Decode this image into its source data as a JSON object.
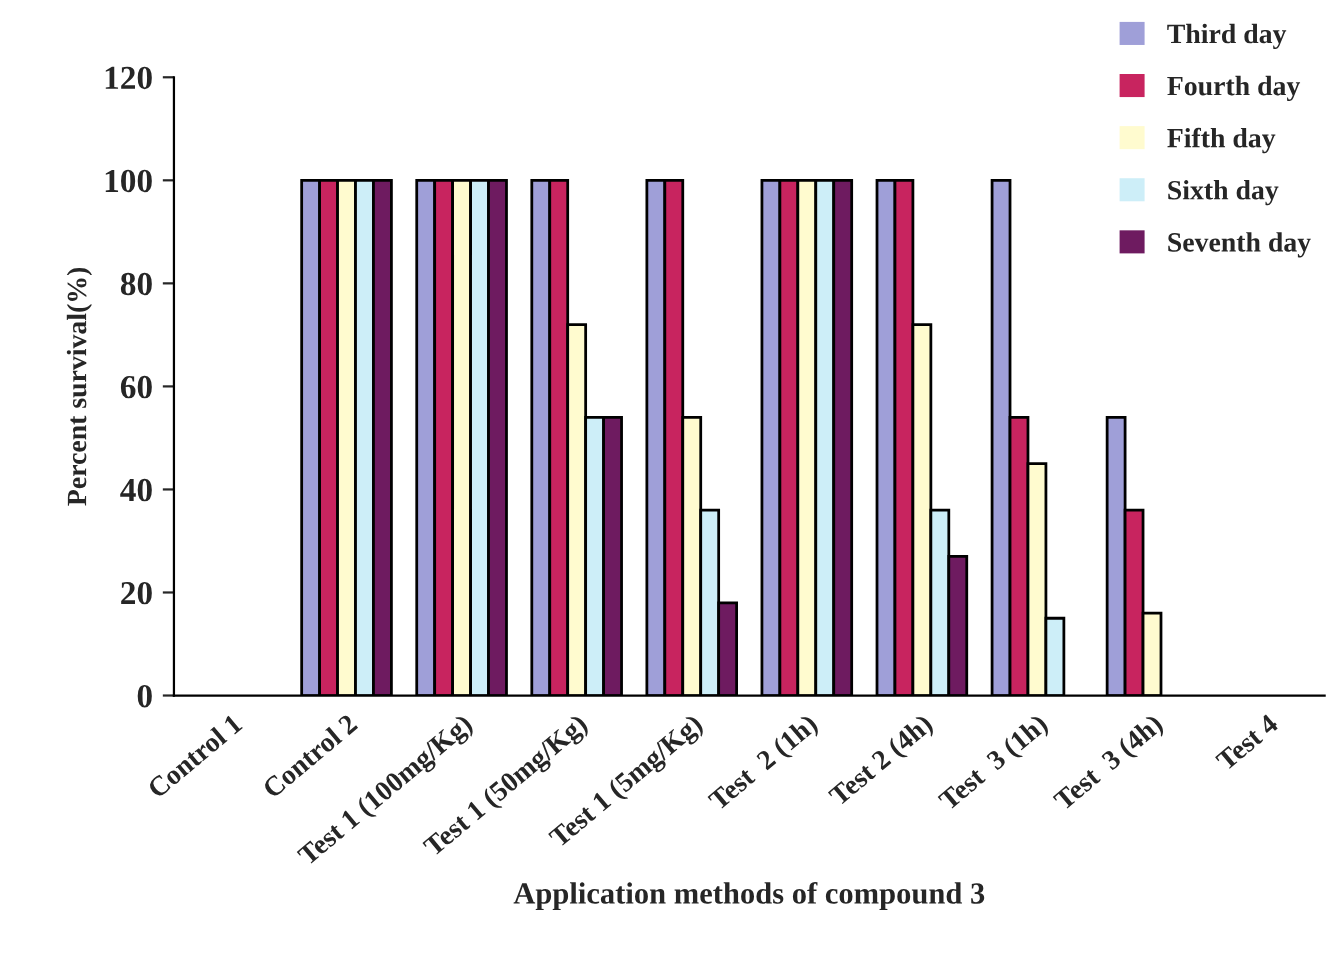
{
  "chart_data": {
    "type": "bar",
    "xlabel": "Application methods of compound 3",
    "ylabel": "Percent survival(%)",
    "categories": [
      "Control 1",
      "Control 2",
      "Test 1 (100mg/Kg)",
      "Test 1 (50mg/Kg)",
      "Test 1 (5mg/Kg)",
      "Test  2 (1h)",
      "Test 2 (4h)",
      "Test  3 (1h)",
      "Test  3 (4h)",
      "Test 4"
    ],
    "series": [
      {
        "name": "Third day",
        "color": "#9f9fd8",
        "values": [
          0,
          100,
          100,
          100,
          100,
          100,
          100,
          100,
          54,
          0
        ]
      },
      {
        "name": "Fourth day",
        "color": "#c8245f",
        "values": [
          0,
          100,
          100,
          100,
          100,
          100,
          100,
          54,
          36,
          0
        ]
      },
      {
        "name": "Fifth day",
        "color": "#fffbcf",
        "values": [
          0,
          100,
          100,
          72,
          54,
          100,
          72,
          45,
          16,
          0
        ]
      },
      {
        "name": "Sixth day",
        "color": "#cdeef8",
        "values": [
          0,
          100,
          100,
          54,
          36,
          100,
          36,
          15,
          0,
          0
        ]
      },
      {
        "name": "Seventh day",
        "color": "#6e1b60",
        "values": [
          0,
          100,
          100,
          54,
          18,
          100,
          27,
          0,
          0,
          0
        ]
      }
    ],
    "ylim": [
      0,
      120
    ],
    "yticks": [
      0,
      20,
      40,
      60,
      80,
      100,
      120
    ],
    "grid": false,
    "legend": "top right"
  }
}
